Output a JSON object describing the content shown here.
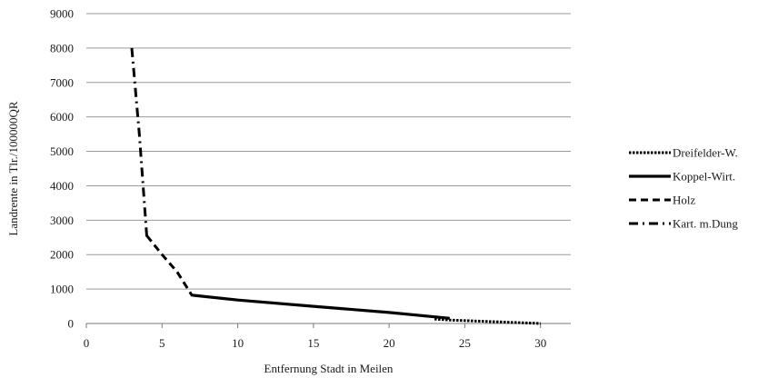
{
  "chart_data": {
    "type": "line",
    "title": "",
    "xlabel": "Entfernung Stadt in Meilen",
    "ylabel": "Landrente in Tlr./100000QR",
    "xlim": [
      0,
      32
    ],
    "ylim": [
      0,
      9000
    ],
    "xticks": [
      0,
      5,
      10,
      15,
      20,
      25,
      30
    ],
    "yticks": [
      0,
      1000,
      2000,
      3000,
      4000,
      5000,
      6000,
      7000,
      8000,
      9000
    ],
    "grid": "horizontal",
    "legend_position": "right",
    "series": [
      {
        "name": "Dreifelder-W.",
        "style": "dotted",
        "color": "#000000",
        "points": [
          [
            23,
            130
          ],
          [
            24,
            100
          ],
          [
            27,
            50
          ],
          [
            30,
            0
          ]
        ]
      },
      {
        "name": "Koppel-Wirt.",
        "style": "solid",
        "color": "#000000",
        "points": [
          [
            7,
            820
          ],
          [
            10,
            680
          ],
          [
            15,
            500
          ],
          [
            20,
            320
          ],
          [
            24,
            150
          ]
        ]
      },
      {
        "name": "Holz",
        "style": "dashed",
        "color": "#000000",
        "points": [
          [
            4,
            2550
          ],
          [
            5,
            2000
          ],
          [
            6,
            1500
          ],
          [
            7,
            800
          ]
        ]
      },
      {
        "name": "Kart. m.Dung",
        "style": "dashdot",
        "color": "#000000",
        "points": [
          [
            3,
            8000
          ],
          [
            3.5,
            5500
          ],
          [
            4,
            2500
          ]
        ]
      }
    ]
  }
}
